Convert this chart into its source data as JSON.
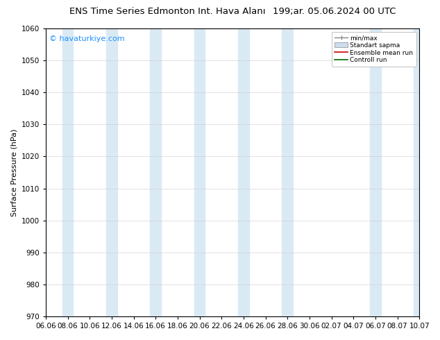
{
  "title_left": "ENS Time Series Edmonton Int. Hava Alanı",
  "title_right": "199;ar. 05.06.2024 00 UTC",
  "ylabel": "Surface Pressure (hPa)",
  "watermark": "© havaturkiye.com",
  "ylim": [
    970,
    1060
  ],
  "yticks": [
    970,
    980,
    990,
    1000,
    1010,
    1020,
    1030,
    1040,
    1050,
    1060
  ],
  "x_tick_labels": [
    "06.06",
    "08.06",
    "10.06",
    "12.06",
    "14.06",
    "16.06",
    "18.06",
    "20.06",
    "22.06",
    "24.06",
    "26.06",
    "28.06",
    "30.06",
    "02.07",
    "04.07",
    "06.07",
    "08.07",
    "10.07"
  ],
  "n_ticks": 18,
  "shaded_band_color": "#daeaf5",
  "shaded_band_alpha": 1.0,
  "background_color": "#ffffff",
  "legend_entries": [
    "min/max",
    "Standart sapma",
    "Ensemble mean run",
    "Controll run"
  ],
  "legend_line_color": "#888888",
  "legend_fill_color": "#ccddee",
  "legend_mean_color": "#cc0000",
  "legend_control_color": "#006600",
  "title_fontsize": 9.5,
  "watermark_color": "#1e90ff",
  "fig_width": 6.34,
  "fig_height": 4.9,
  "dpi": 100,
  "shaded_columns": [
    1,
    3,
    5,
    7,
    9,
    11,
    15,
    17
  ],
  "tick_color": "#000000",
  "axis_font_size": 7.5,
  "ylabel_fontsize": 8
}
